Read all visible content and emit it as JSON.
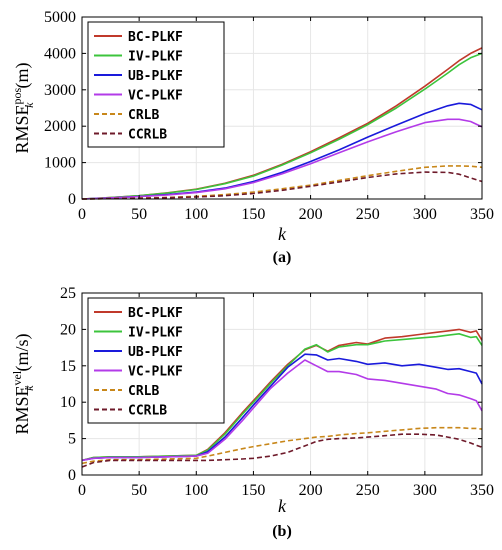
{
  "chart_data": [
    {
      "type": "line",
      "panel_label": "(a)",
      "xlabel": "k",
      "ylabel_main": "RMSE",
      "ylabel_sup": "pos",
      "ylabel_sub": "k",
      "ylabel_unit": "(m)",
      "xlim": [
        0,
        350
      ],
      "ylim": [
        0,
        5000
      ],
      "xticks": [
        0,
        50,
        100,
        150,
        200,
        250,
        300,
        350
      ],
      "yticks": [
        0,
        1000,
        2000,
        3000,
        4000,
        5000
      ],
      "grid": true,
      "legend_position": "top-left",
      "x": [
        0,
        25,
        50,
        75,
        100,
        125,
        150,
        175,
        200,
        225,
        250,
        275,
        300,
        320,
        330,
        340,
        350
      ],
      "series": [
        {
          "name": "BC-PLKF",
          "color": "#c0392b",
          "dash": "solid",
          "values": [
            0,
            40,
            90,
            170,
            270,
            430,
            650,
            950,
            1300,
            1680,
            2080,
            2560,
            3100,
            3560,
            3800,
            4000,
            4150
          ]
        },
        {
          "name": "IV-PLKF",
          "color": "#3cc43c",
          "dash": "solid",
          "values": [
            0,
            40,
            90,
            165,
            260,
            420,
            630,
            930,
            1270,
            1640,
            2040,
            2500,
            3020,
            3460,
            3690,
            3880,
            4000
          ]
        },
        {
          "name": "UB-PLKF",
          "color": "#1a1adb",
          "dash": "solid",
          "values": [
            0,
            30,
            70,
            120,
            190,
            300,
            480,
            730,
            1030,
            1350,
            1700,
            2030,
            2350,
            2560,
            2630,
            2600,
            2450
          ]
        },
        {
          "name": "VC-PLKF",
          "color": "#b33be8",
          "dash": "solid",
          "values": [
            0,
            30,
            65,
            110,
            175,
            280,
            450,
            690,
            970,
            1270,
            1570,
            1850,
            2100,
            2190,
            2190,
            2130,
            1980
          ]
        },
        {
          "name": "CRLB",
          "color": "#c8871a",
          "dash": "dashed",
          "values": [
            0,
            10,
            25,
            45,
            75,
            120,
            190,
            280,
            380,
            510,
            640,
            760,
            870,
            910,
            910,
            900,
            870
          ]
        },
        {
          "name": "CCRLB",
          "color": "#6e1a2a",
          "dash": "dashed",
          "values": [
            0,
            10,
            20,
            35,
            55,
            90,
            150,
            240,
            350,
            470,
            590,
            690,
            740,
            730,
            680,
            580,
            480
          ]
        }
      ]
    },
    {
      "type": "line",
      "panel_label": "(b)",
      "xlabel": "k",
      "ylabel_main": "RMSE",
      "ylabel_sup": "vel",
      "ylabel_sub": "k",
      "ylabel_unit": "(m/s)",
      "xlim": [
        0,
        350
      ],
      "ylim": [
        0,
        25
      ],
      "xticks": [
        0,
        50,
        100,
        150,
        200,
        250,
        300,
        350
      ],
      "yticks": [
        0,
        5,
        10,
        15,
        20,
        25
      ],
      "grid": true,
      "legend_position": "top-left",
      "x": [
        0,
        10,
        25,
        50,
        75,
        100,
        110,
        125,
        140,
        150,
        165,
        180,
        195,
        205,
        215,
        225,
        240,
        250,
        265,
        280,
        295,
        310,
        320,
        330,
        340,
        345,
        350
      ],
      "series": [
        {
          "name": "BC-PLKF",
          "color": "#c0392b",
          "dash": "solid",
          "values": [
            2.0,
            2.4,
            2.5,
            2.5,
            2.6,
            2.7,
            3.5,
            5.8,
            8.5,
            10.2,
            12.8,
            15.2,
            17.2,
            17.8,
            17.0,
            17.8,
            18.2,
            18.0,
            18.8,
            19.0,
            19.3,
            19.6,
            19.8,
            20.0,
            19.6,
            19.8,
            18.5
          ]
        },
        {
          "name": "IV-PLKF",
          "color": "#3cc43c",
          "dash": "solid",
          "values": [
            2.0,
            2.4,
            2.5,
            2.5,
            2.6,
            2.7,
            3.4,
            5.6,
            8.3,
            10.0,
            12.6,
            15.0,
            17.3,
            17.9,
            16.9,
            17.6,
            17.9,
            17.9,
            18.4,
            18.6,
            18.8,
            19.0,
            19.2,
            19.4,
            18.9,
            19.0,
            17.8
          ]
        },
        {
          "name": "UB-PLKF",
          "color": "#1a1adb",
          "dash": "solid",
          "values": [
            2.0,
            2.3,
            2.4,
            2.4,
            2.5,
            2.6,
            3.2,
            5.2,
            7.8,
            9.6,
            12.2,
            14.8,
            16.6,
            16.5,
            15.8,
            16.0,
            15.6,
            15.2,
            15.4,
            15.0,
            15.2,
            14.8,
            14.5,
            14.6,
            14.2,
            14.0,
            12.5
          ]
        },
        {
          "name": "VC-PLKF",
          "color": "#b33be8",
          "dash": "solid",
          "values": [
            2.0,
            2.3,
            2.4,
            2.4,
            2.5,
            2.6,
            3.0,
            4.9,
            7.4,
            9.2,
            11.9,
            14.0,
            15.8,
            15.0,
            14.2,
            14.2,
            13.8,
            13.2,
            13.0,
            12.6,
            12.2,
            11.8,
            11.2,
            11.0,
            10.5,
            10.2,
            8.8
          ]
        },
        {
          "name": "CRLB",
          "color": "#c8871a",
          "dash": "dashed",
          "values": [
            1.6,
            1.9,
            2.1,
            2.1,
            2.2,
            2.3,
            2.6,
            3.1,
            3.6,
            3.9,
            4.3,
            4.7,
            5.0,
            5.2,
            5.3,
            5.5,
            5.7,
            5.8,
            6.0,
            6.2,
            6.4,
            6.5,
            6.5,
            6.5,
            6.4,
            6.4,
            6.3
          ]
        },
        {
          "name": "CCRLB",
          "color": "#6e1a2a",
          "dash": "dashed",
          "values": [
            1.1,
            1.7,
            2.0,
            2.0,
            2.0,
            2.0,
            2.0,
            2.1,
            2.2,
            2.3,
            2.6,
            3.1,
            4.0,
            4.6,
            4.9,
            5.0,
            5.1,
            5.2,
            5.4,
            5.6,
            5.6,
            5.5,
            5.2,
            4.9,
            4.4,
            4.1,
            3.8
          ]
        }
      ]
    }
  ]
}
